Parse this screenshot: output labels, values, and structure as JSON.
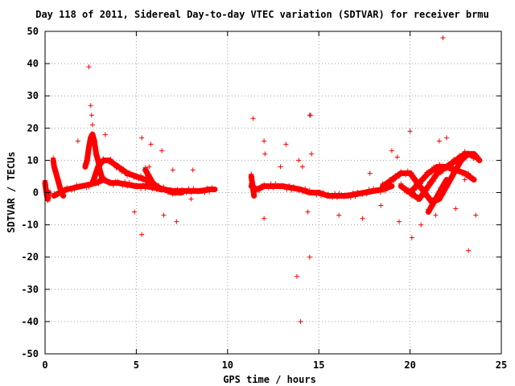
{
  "chart_data": {
    "type": "scatter",
    "title": "Day 118 of 2011, Sidereal Day-to-day VTEC variation (SDTVAR) for receiver brmu",
    "xlabel": "GPS time / hours",
    "ylabel": "SDTVAR / TECUs",
    "xlim": [
      0,
      25
    ],
    "ylim": [
      -50,
      50
    ],
    "grid": true,
    "marker": "+",
    "series_color": "#ff0000",
    "xticks": [
      0,
      5,
      10,
      15,
      20,
      25
    ],
    "xtick_labels": [
      "0",
      "5",
      "10",
      "15",
      "20",
      "25"
    ],
    "yticks": [
      -50,
      -40,
      -30,
      -20,
      -10,
      0,
      10,
      20,
      30,
      40,
      50
    ],
    "ytick_labels": [
      "-50",
      "-40",
      "-30",
      "-20",
      "-10",
      "0",
      "10",
      "20",
      "30",
      "40",
      "50"
    ],
    "series": [
      {
        "name": "SDTVAR",
        "segments": [
          {
            "x": [
              0.0,
              0.05,
              0.1,
              0.15,
              0.2
            ],
            "y": [
              3,
              1,
              -1,
              -2,
              0
            ]
          },
          {
            "x": [
              0.5,
              0.8,
              1.2,
              1.6,
              2.0,
              2.4,
              2.8,
              3.2,
              3.6,
              4.0,
              4.5,
              5.0,
              5.5,
              6.0,
              6.5,
              7.0,
              7.5,
              8.0,
              8.5,
              9.0,
              9.3
            ],
            "y": [
              -1,
              0,
              1,
              1.5,
              2,
              2.5,
              3,
              4,
              3,
              3,
              2.5,
              2,
              2,
              1.5,
              1,
              0.5,
              0.5,
              0.5,
              0.5,
              1,
              1
            ]
          },
          {
            "x": [
              0.45,
              0.5,
              0.6,
              0.7,
              0.8,
              0.9,
              1.0
            ],
            "y": [
              10,
              8,
              6,
              4,
              2,
              0,
              -1
            ]
          },
          {
            "x": [
              2.2,
              2.3,
              2.4,
              2.5,
              2.6,
              2.7,
              2.8,
              2.9,
              3.0,
              3.1,
              3.2
            ],
            "y": [
              8,
              10,
              14,
              17,
              18,
              16,
              12,
              10,
              7,
              5,
              4
            ]
          },
          {
            "x": [
              2.6,
              2.9,
              3.2,
              3.5,
              4.0,
              4.5,
              5.0,
              5.5,
              6.0,
              6.5,
              7.0,
              7.5
            ],
            "y": [
              3,
              8,
              10,
              10,
              8,
              6,
              5,
              4,
              2,
              1,
              0,
              0
            ]
          },
          {
            "x": [
              5.5,
              5.7,
              5.9,
              6.1,
              6.3,
              6.5
            ],
            "y": [
              7,
              5,
              3,
              2,
              1,
              1
            ]
          },
          {
            "x": [
              11.3,
              11.6,
              12.0,
              12.5,
              13.0,
              13.5,
              14.0,
              14.5,
              15.0,
              15.5,
              16.0,
              16.5,
              17.0,
              17.5,
              18.0,
              18.5,
              19.0
            ],
            "y": [
              2,
              1,
              2,
              2,
              2,
              1.5,
              1,
              0,
              0,
              -1,
              -1,
              -1,
              -0.5,
              0,
              0.5,
              1,
              2
            ]
          },
          {
            "x": [
              11.3,
              11.35,
              11.4,
              11.45
            ],
            "y": [
              5,
              3,
              1,
              -1
            ]
          },
          {
            "x": [
              18.5,
              19.0,
              19.5,
              20.0,
              20.4,
              20.8,
              21.2,
              21.6,
              22.0,
              22.4,
              22.8,
              23.2,
              23.6
            ],
            "y": [
              2,
              4,
              6,
              6,
              3,
              0,
              -3,
              -2,
              2,
              6,
              10,
              12,
              11
            ]
          },
          {
            "x": [
              19.5,
              20.0,
              20.5,
              21.0,
              21.5,
              22.0,
              22.5,
              23.0,
              23.5,
              23.8
            ],
            "y": [
              2,
              0,
              -2,
              2,
              6,
              8,
              10,
              12,
              12,
              10
            ]
          },
          {
            "x": [
              20.0,
              20.5,
              21.0,
              21.5,
              22.0,
              22.5,
              23.0,
              23.5
            ],
            "y": [
              0,
              3,
              6,
              8,
              8,
              7,
              6,
              4
            ]
          },
          {
            "x": [
              21.0,
              21.2,
              21.4,
              21.6,
              21.8,
              22.0
            ],
            "y": [
              -6,
              -4,
              -2,
              0,
              2,
              4
            ]
          }
        ],
        "outliers": {
          "x": [
            2.4,
            2.5,
            2.55,
            2.6,
            1.8,
            3.3,
            4.9,
            5.3,
            5.3,
            5.7,
            5.8,
            6.4,
            6.5,
            7.2,
            7.0,
            8.1,
            8.0,
            11.4,
            12.0,
            12.05,
            12.0,
            13.8,
            13.9,
            14.1,
            14.4,
            14.5,
            14.5,
            14.55,
            14.6,
            14.0,
            13.2,
            12.9,
            16.1,
            17.4,
            17.8,
            18.4,
            19.0,
            19.4,
            20.0,
            20.1,
            20.6,
            21.4,
            21.6,
            21.8,
            22.0,
            22.5,
            23.0,
            23.2,
            23.6,
            21.4,
            19.3
          ],
          "y": [
            39,
            27,
            24,
            21,
            16,
            18,
            -6,
            -13,
            17,
            8,
            15,
            13,
            -7,
            -9,
            7,
            7,
            -2,
            23,
            16,
            12,
            -8,
            -26,
            10,
            8,
            -6,
            -20,
            24,
            24,
            12,
            -40,
            15,
            8,
            -7,
            -8,
            6,
            -4,
            13,
            -9,
            19,
            -14,
            -10,
            -7,
            16,
            48,
            17,
            -5,
            4,
            -18,
            -7,
            8,
            11
          ]
        }
      }
    ]
  }
}
